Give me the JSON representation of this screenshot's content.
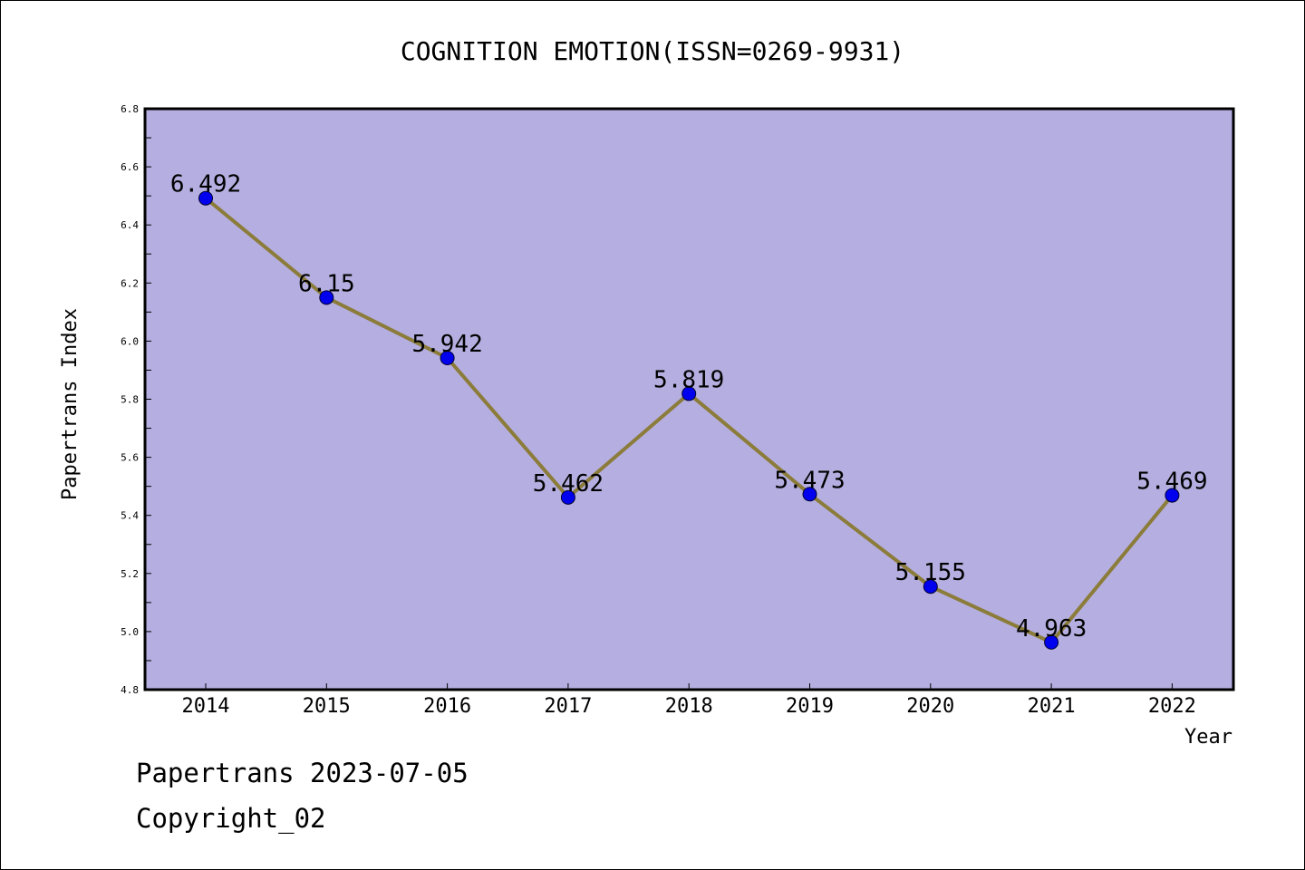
{
  "chart_data": {
    "type": "line",
    "title": "COGNITION EMOTION(ISSN=0269-9931)",
    "xlabel": "Year",
    "ylabel": "Papertrans Index",
    "categories": [
      "2014",
      "2015",
      "2016",
      "2017",
      "2018",
      "2019",
      "2020",
      "2021",
      "2022"
    ],
    "values": [
      6.492,
      6.15,
      5.942,
      5.462,
      5.819,
      5.473,
      5.155,
      4.963,
      5.469
    ],
    "value_labels": [
      "6.492",
      "6.15",
      "5.942",
      "5.462",
      "5.819",
      "5.473",
      "5.155",
      "4.963",
      "5.469"
    ],
    "ylim": [
      4.8,
      6.8
    ],
    "y_ticks": [
      "4.8",
      "5.0",
      "5.2",
      "5.4",
      "5.6",
      "5.8",
      "6.0",
      "6.2",
      "6.4",
      "6.6",
      "6.8"
    ],
    "grid": false,
    "colors": {
      "plot_background": "#b5aee0",
      "line": "#8b7c3a",
      "marker": "#0000ee"
    }
  },
  "footer": {
    "line1": "Papertrans 2023-07-05",
    "line2": "Copyright_02"
  }
}
